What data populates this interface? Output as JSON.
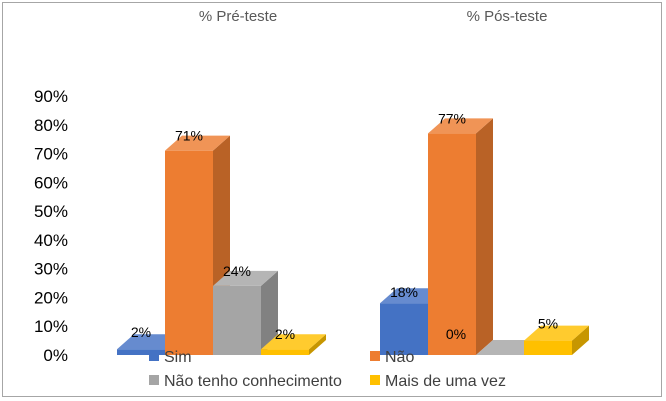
{
  "chart_data": {
    "type": "bar",
    "subtype": "3d-clustered-column",
    "categories": [
      "% Pré-teste",
      "% Pós-teste"
    ],
    "series": [
      {
        "name": "Sim",
        "values": [
          2,
          18
        ],
        "labels": [
          "2%",
          "18%"
        ],
        "color": "#4472c4"
      },
      {
        "name": "Não",
        "values": [
          71,
          77
        ],
        "labels": [
          "71%",
          "77%"
        ],
        "color": "#ed7d31"
      },
      {
        "name": "Não tenho conhecimento",
        "values": [
          24,
          0
        ],
        "labels": [
          "24%",
          "0%"
        ],
        "color": "#a5a5a5"
      },
      {
        "name": "Mais de uma vez",
        "values": [
          2,
          5
        ],
        "labels": [
          "2%",
          "5%"
        ],
        "color": "#ffc000"
      }
    ],
    "yticks": [
      "0%",
      "10%",
      "20%",
      "30%",
      "40%",
      "50%",
      "60%",
      "70%",
      "80%",
      "90%"
    ],
    "ylim": [
      0,
      90
    ],
    "grid": false,
    "legend_position": "bottom"
  }
}
